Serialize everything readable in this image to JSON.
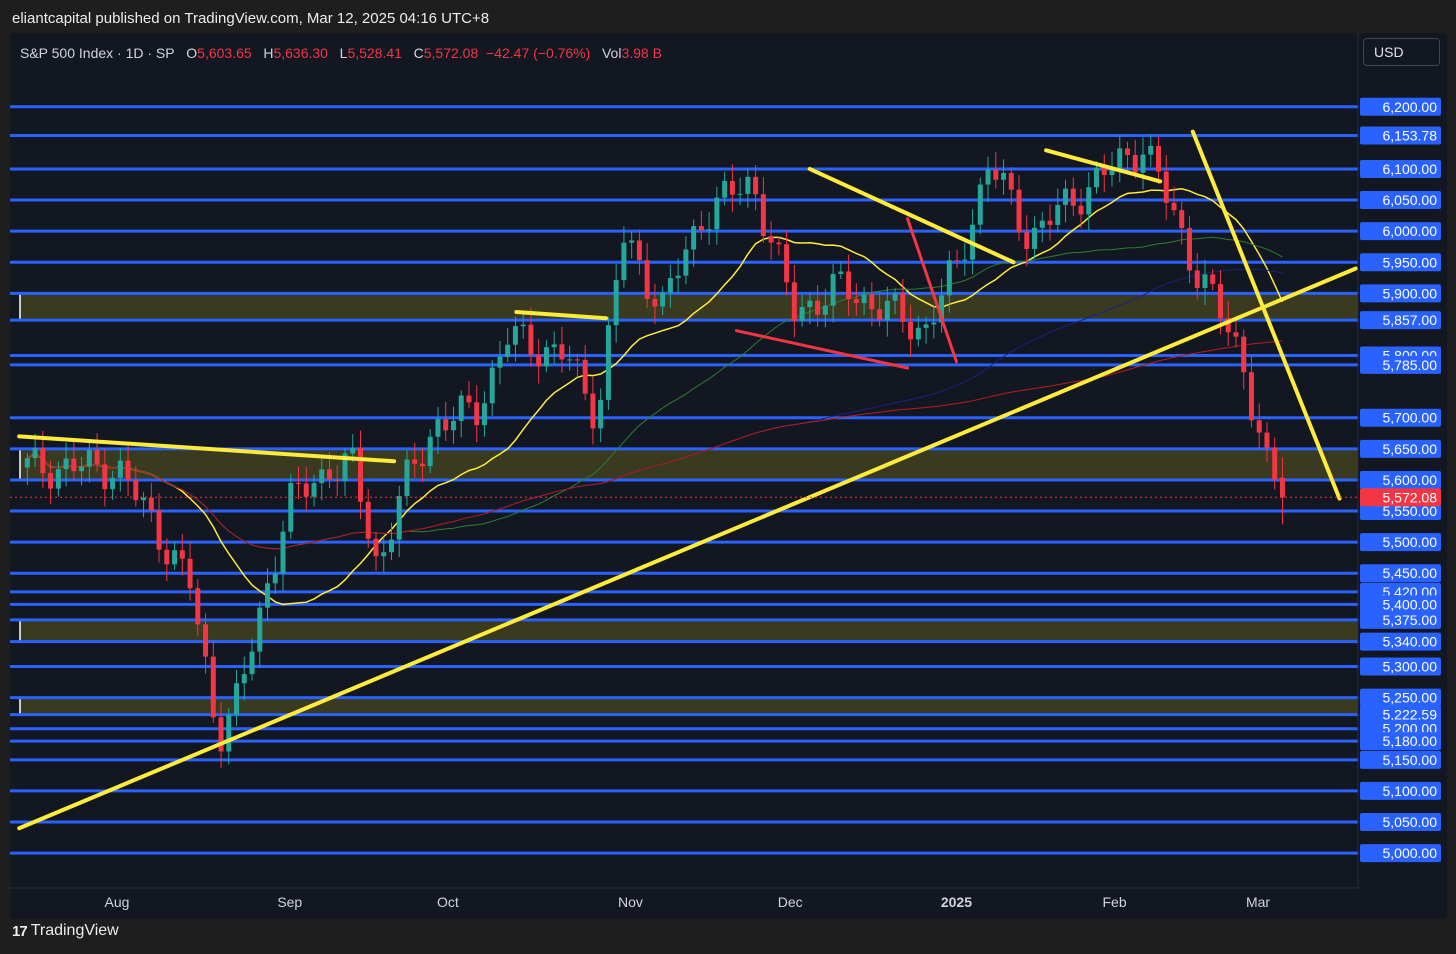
{
  "header": {
    "publish_text": "eliantcapital published on TradingView.com, Mar 12, 2025 04:16 UTC+8"
  },
  "legend": {
    "symbol": "S&P 500 Index · 1D · SP",
    "o_label": "O",
    "o_value": "5,603.65",
    "h_label": "H",
    "h_value": "5,636.30",
    "l_label": "L",
    "l_value": "5,528.41",
    "c_label": "C",
    "c_value": "5,572.08",
    "change": "−42.47 (−0.76%)",
    "vol_label": "Vol",
    "vol_value": "3.98 B"
  },
  "currency_button": "USD",
  "footer": {
    "brand": "TradingView",
    "logo_glyph": "17"
  },
  "colors": {
    "up": "#26a69a",
    "down": "#f23645",
    "level_line": "#2962ff",
    "trendline": "#ffeb3b",
    "zone_fill": "#4a4a1f"
  },
  "chart_data": {
    "type": "candlestick",
    "title": "S&P 500 Index · 1D · SP",
    "x_tick_labels": [
      "Aug",
      "Sep",
      "Oct",
      "Nov",
      "Dec",
      "2025",
      "Feb",
      "Mar"
    ],
    "y_range": [
      4960,
      6280
    ],
    "price_levels": [
      {
        "value": 6200,
        "label": "6,200.00"
      },
      {
        "value": 6153.78,
        "label": "6,153.78"
      },
      {
        "value": 6100,
        "label": "6,100.00"
      },
      {
        "value": 6050,
        "label": "6,050.00"
      },
      {
        "value": 6000,
        "label": "6,000.00"
      },
      {
        "value": 5950,
        "label": "5,950.00"
      },
      {
        "value": 5900,
        "label": "5,900.00"
      },
      {
        "value": 5857,
        "label": "5,857.00"
      },
      {
        "value": 5800,
        "label": "5,800.00"
      },
      {
        "value": 5785,
        "label": "5,785.00"
      },
      {
        "value": 5700,
        "label": "5,700.00"
      },
      {
        "value": 5650,
        "label": "5,650.00"
      },
      {
        "value": 5600,
        "label": "5,600.00"
      },
      {
        "value": 5550,
        "label": "5,550.00"
      },
      {
        "value": 5500,
        "label": "5,500.00"
      },
      {
        "value": 5450,
        "label": "5,450.00"
      },
      {
        "value": 5420,
        "label": "5,420.00"
      },
      {
        "value": 5400,
        "label": "5,400.00"
      },
      {
        "value": 5375,
        "label": "5,375.00"
      },
      {
        "value": 5340,
        "label": "5,340.00"
      },
      {
        "value": 5300,
        "label": "5,300.00"
      },
      {
        "value": 5250,
        "label": "5,250.00"
      },
      {
        "value": 5222.59,
        "label": "5,222.59"
      },
      {
        "value": 5200,
        "label": "5,200.00"
      },
      {
        "value": 5180,
        "label": "5,180.00"
      },
      {
        "value": 5150,
        "label": "5,150.00"
      },
      {
        "value": 5100,
        "label": "5,100.00"
      },
      {
        "value": 5050,
        "label": "5,050.00"
      },
      {
        "value": 5000,
        "label": "5,000.00"
      }
    ],
    "last_price": {
      "value": 5572.08,
      "label": "5,572.08"
    },
    "zones": [
      {
        "from": 5600,
        "to": 5650
      },
      {
        "from": 5857,
        "to": 5900
      },
      {
        "from": 5340,
        "to": 5375
      },
      {
        "from": 5222.59,
        "to": 5250
      }
    ],
    "close_anchors": [
      {
        "month": 0.0,
        "price": 5620
      },
      {
        "month": 0.2,
        "price": 5540
      },
      {
        "month": 0.45,
        "price": 5430
      },
      {
        "month": 0.62,
        "price": 5190
      },
      {
        "month": 0.75,
        "price": 5250
      },
      {
        "month": 0.9,
        "price": 5410
      },
      {
        "month": 1.05,
        "price": 5560
      },
      {
        "month": 1.3,
        "price": 5620
      },
      {
        "month": 1.45,
        "price": 5620
      },
      {
        "month": 1.6,
        "price": 5460
      },
      {
        "month": 1.75,
        "price": 5580
      },
      {
        "month": 1.95,
        "price": 5690
      },
      {
        "month": 2.2,
        "price": 5710
      },
      {
        "month": 2.4,
        "price": 5830
      },
      {
        "month": 2.75,
        "price": 5800
      },
      {
        "month": 2.95,
        "price": 5705
      },
      {
        "month": 3.1,
        "price": 5990
      },
      {
        "month": 3.35,
        "price": 5880
      },
      {
        "month": 3.6,
        "price": 6030
      },
      {
        "month": 3.9,
        "price": 6080
      },
      {
        "month": 4.15,
        "price": 5870
      },
      {
        "month": 4.45,
        "price": 5910
      },
      {
        "month": 4.95,
        "price": 5840
      },
      {
        "month": 5.15,
        "price": 5940
      },
      {
        "month": 5.35,
        "price": 6110
      },
      {
        "month": 5.6,
        "price": 5990
      },
      {
        "month": 5.9,
        "price": 6060
      },
      {
        "month": 6.3,
        "price": 6140
      },
      {
        "month": 6.6,
        "price": 5950
      },
      {
        "month": 6.9,
        "price": 5800
      },
      {
        "month": 7.05,
        "price": 5620
      },
      {
        "month": 7.15,
        "price": 5572
      }
    ],
    "last_candle": {
      "open": 5603.65,
      "high": 5636.3,
      "low": 5528.41,
      "close": 5572.08
    },
    "trendlines": [
      {
        "from": {
          "month": -0.6,
          "price": 5040
        },
        "to": {
          "month": 7.6,
          "price": 5940
        },
        "color": "yellow"
      },
      {
        "from": {
          "month": 6.6,
          "price": 6160
        },
        "to": {
          "month": 7.5,
          "price": 5570
        },
        "color": "yellow"
      },
      {
        "from": {
          "month": -0.6,
          "price": 5670
        },
        "to": {
          "month": 1.7,
          "price": 5630
        },
        "color": "yellow"
      },
      {
        "from": {
          "month": 4.25,
          "price": 6100
        },
        "to": {
          "month": 5.5,
          "price": 5950
        },
        "color": "yellow"
      },
      {
        "from": {
          "month": 5.7,
          "price": 6130
        },
        "to": {
          "month": 6.4,
          "price": 6080
        },
        "color": "yellow"
      },
      {
        "from": {
          "month": 2.45,
          "price": 5870
        },
        "to": {
          "month": 3.0,
          "price": 5860
        },
        "color": "yellow"
      },
      {
        "from": {
          "month": 3.8,
          "price": 5840
        },
        "to": {
          "month": 4.85,
          "price": 5780
        },
        "color": "red"
      },
      {
        "from": {
          "month": 4.85,
          "price": 6020
        },
        "to": {
          "month": 5.15,
          "price": 5790
        },
        "color": "red"
      }
    ]
  }
}
